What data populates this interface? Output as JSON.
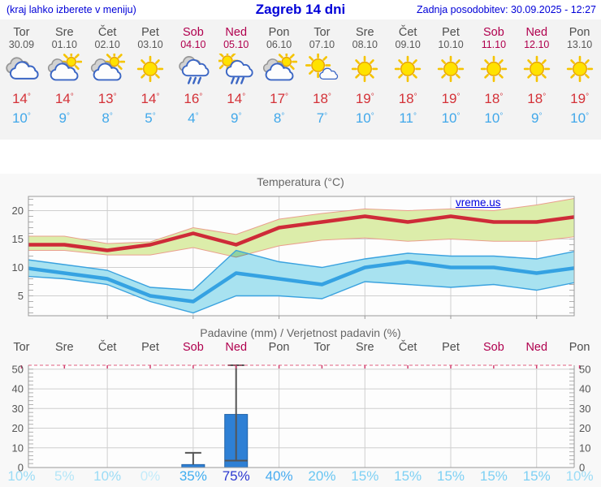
{
  "header": {
    "left_note": "(kraj lahko izberete v meniju)",
    "title": "Zagreb 14 dni",
    "updated": "Zadnja posodobitev: 30.09.2025 - 12:27"
  },
  "watermark": "vreme.us",
  "colors": {
    "link_blue": "#0000d8",
    "weekday_gray": "#4e4e4e",
    "weekend_red": "#b0004e",
    "tmax_red": "#d43238",
    "tmin_blue": "#41a8ea",
    "bar_blue": "#2e80d5",
    "band_green": "#dcedaa",
    "band_cyan": "#a8e2f0",
    "line_red": "#ce2b38",
    "line_blue": "#35a2e2"
  },
  "days": [
    {
      "name": "Tor",
      "date": "30.09",
      "weekend": false,
      "icon": "cloudy",
      "tmax": "14",
      "tmin": "10",
      "pop": "10%",
      "pop_color": "#9bdcf6"
    },
    {
      "name": "Sre",
      "date": "01.10",
      "weekend": false,
      "icon": "sun-cloud",
      "tmax": "14",
      "tmin": "9",
      "pop": "5%",
      "pop_color": "#b4e6f8"
    },
    {
      "name": "Čet",
      "date": "02.10",
      "weekend": false,
      "icon": "sun-cloud",
      "tmax": "13",
      "tmin": "8",
      "pop": "10%",
      "pop_color": "#9bdcf6"
    },
    {
      "name": "Pet",
      "date": "03.10",
      "weekend": false,
      "icon": "sunny",
      "tmax": "14",
      "tmin": "5",
      "pop": "0%",
      "pop_color": "#c3ebfa"
    },
    {
      "name": "Sob",
      "date": "04.10",
      "weekend": true,
      "icon": "rain",
      "tmax": "16",
      "tmin": "4",
      "pop": "35%",
      "pop_color": "#3fadf0"
    },
    {
      "name": "Ned",
      "date": "05.10",
      "weekend": true,
      "icon": "sun-rain",
      "tmax": "14",
      "tmin": "9",
      "pop": "75%",
      "pop_color": "#2b38d0"
    },
    {
      "name": "Pon",
      "date": "06.10",
      "weekend": false,
      "icon": "sun-cloud",
      "tmax": "17",
      "tmin": "8",
      "pop": "40%",
      "pop_color": "#47abf0"
    },
    {
      "name": "Tor",
      "date": "07.10",
      "weekend": false,
      "icon": "sun-small-cloud",
      "tmax": "18",
      "tmin": "7",
      "pop": "20%",
      "pop_color": "#68c6f2"
    },
    {
      "name": "Sre",
      "date": "08.10",
      "weekend": false,
      "icon": "sunny",
      "tmax": "19",
      "tmin": "10",
      "pop": "15%",
      "pop_color": "#7dd0f4"
    },
    {
      "name": "Čet",
      "date": "09.10",
      "weekend": false,
      "icon": "sunny",
      "tmax": "18",
      "tmin": "11",
      "pop": "15%",
      "pop_color": "#7dd0f4"
    },
    {
      "name": "Pet",
      "date": "10.10",
      "weekend": false,
      "icon": "sunny",
      "tmax": "19",
      "tmin": "10",
      "pop": "15%",
      "pop_color": "#7dd0f4"
    },
    {
      "name": "Sob",
      "date": "11.10",
      "weekend": true,
      "icon": "sunny",
      "tmax": "18",
      "tmin": "10",
      "pop": "15%",
      "pop_color": "#7dd0f4"
    },
    {
      "name": "Ned",
      "date": "12.10",
      "weekend": true,
      "icon": "sunny",
      "tmax": "18",
      "tmin": "9",
      "pop": "15%",
      "pop_color": "#7dd0f4"
    },
    {
      "name": "Pon",
      "date": "13.10",
      "weekend": false,
      "icon": "sunny",
      "tmax": "19",
      "tmin": "10",
      "pop": "10%",
      "pop_color": "#9bdcf6"
    }
  ],
  "chart_data": [
    {
      "type": "area",
      "title": "Temperatura (°C)",
      "categories": [
        "Tor",
        "Sre",
        "Čet",
        "Pet",
        "Sob",
        "Ned",
        "Pon",
        "Tor",
        "Sre",
        "Čet",
        "Pet",
        "Sob",
        "Ned",
        "Pon"
      ],
      "ylim": [
        1.5,
        22.5
      ],
      "yticks": [
        5,
        10,
        15,
        20
      ],
      "grid": true,
      "grid_day_indexes": [
        2,
        4,
        6,
        8,
        10,
        12
      ],
      "legend_position": "none",
      "series": [
        {
          "name": "tmax",
          "values": [
            14,
            14,
            13,
            14,
            16,
            14,
            17,
            18,
            19,
            18,
            19,
            18,
            18,
            19
          ]
        },
        {
          "name": "tmax_range_high",
          "values": [
            15.5,
            15.5,
            14.2,
            14.5,
            17,
            15.8,
            18.5,
            19.5,
            20.3,
            20,
            20.3,
            20,
            21,
            22.3
          ]
        },
        {
          "name": "tmax_range_low",
          "values": [
            13,
            13,
            12.2,
            12.2,
            13.5,
            11.8,
            13.8,
            14.8,
            15.2,
            14.6,
            15,
            14.6,
            14.6,
            15.5
          ]
        },
        {
          "name": "tmin",
          "values": [
            10,
            9,
            8,
            5,
            4,
            9,
            8,
            7,
            10,
            11,
            10,
            10,
            9,
            10
          ]
        },
        {
          "name": "tmin_range_high",
          "values": [
            11.5,
            10.5,
            9.5,
            6.5,
            6,
            13,
            11,
            10,
            11.5,
            12.5,
            12,
            12,
            11.5,
            13
          ]
        },
        {
          "name": "tmin_range_low",
          "values": [
            8.5,
            8,
            7,
            4,
            2,
            5,
            5,
            4.5,
            7.5,
            7,
            6.5,
            7,
            6,
            7.5
          ]
        }
      ]
    },
    {
      "type": "bar",
      "title": "Padavine (mm) / Verjetnost padavin (%)",
      "categories": [
        "Tor",
        "Sre",
        "Čet",
        "Pet",
        "Sob",
        "Ned",
        "Pon",
        "Tor",
        "Sre",
        "Čet",
        "Pet",
        "Sob",
        "Ned",
        "Pon"
      ],
      "values": [
        0,
        0,
        0,
        0,
        1.5,
        27,
        0,
        0,
        0,
        0,
        0,
        0,
        0,
        0
      ],
      "whiskers": [
        {
          "index": 4,
          "high": 7.5,
          "low": null
        },
        {
          "index": 5,
          "high": 52,
          "low": 3.5
        }
      ],
      "probabilities": [
        "10%",
        "5%",
        "10%",
        "0%",
        "35%",
        "75%",
        "40%",
        "20%",
        "15%",
        "15%",
        "15%",
        "15%",
        "15%",
        "10%"
      ],
      "ylim": [
        0,
        52
      ],
      "yticks": [
        0,
        10,
        20,
        30,
        40,
        50
      ],
      "grid": true,
      "grid_day_indexes": [
        2,
        4,
        6,
        8,
        10,
        12
      ]
    }
  ]
}
